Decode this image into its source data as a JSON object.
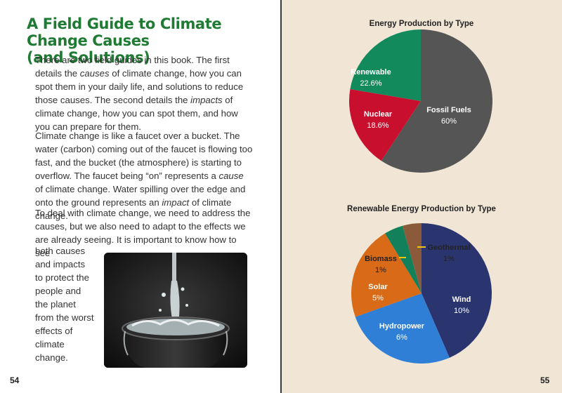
{
  "left_page": {
    "title_line1": "A Field Guide to Climate Change Causes",
    "title_line2": "(and Solutions)",
    "paragraph1": [
      {
        "t": "There are two field guides in this book. The first details the "
      },
      {
        "t": "causes",
        "em": true
      },
      {
        "t": " of climate change, how you can spot them in your daily life, and solutions to reduce those causes. The second details the "
      },
      {
        "t": "impacts",
        "em": true
      },
      {
        "t": " of climate change, how you can spot them, and how you can prepare for them."
      }
    ],
    "paragraph2": [
      {
        "t": "Climate change is like a faucet over a bucket. The water (carbon) coming out of the faucet is flowing too fast, and the bucket (the atmosphere) is starting to overflow. The faucet being “on” represents a "
      },
      {
        "t": "cause",
        "em": true
      },
      {
        "t": " of climate change. Water spilling over the edge and onto the ground represents an "
      },
      {
        "t": "impact",
        "em": true
      },
      {
        "t": " of climate change."
      }
    ],
    "paragraph3": "To deal with climate change, we need to address the causes, but we also need to adapt to the effects we are already seeing. It is important to know how to see",
    "paragraph3_cont_lines": [
      "both causes",
      "and impacts",
      "to protect the",
      "people and",
      "the planet",
      "from the worst",
      "effects of",
      "climate change."
    ],
    "page_number": "54"
  },
  "right_page": {
    "page_number": "55"
  },
  "chart_data": [
    {
      "type": "pie",
      "title": "Energy Production by Type",
      "slices": [
        {
          "label": "Fossil Fuels",
          "value_label": "60%",
          "value": 60,
          "color": "#555555"
        },
        {
          "label": "Nuclear",
          "value_label": "18.6%",
          "value": 18.6,
          "color": "#c8102e"
        },
        {
          "label": "Renewable",
          "value_label": "22.6%",
          "value": 22.6,
          "color": "#138a5c"
        }
      ]
    },
    {
      "type": "pie",
      "title": "Renewable Energy Production by Type",
      "slices": [
        {
          "label": "Wind",
          "value_label": "10%",
          "value": 10,
          "color": "#2a3570"
        },
        {
          "label": "Hydropower",
          "value_label": "6%",
          "value": 6,
          "color": "#2f7fd6"
        },
        {
          "label": "Solar",
          "value_label": "5%",
          "value": 5,
          "color": "#d96a17"
        },
        {
          "label": "Biomass",
          "value_label": "1%",
          "value": 1,
          "color": "#12805a"
        },
        {
          "label": "Geothermal",
          "value_label": "1%",
          "value": 1,
          "color": "#8a5a3b"
        }
      ]
    }
  ]
}
